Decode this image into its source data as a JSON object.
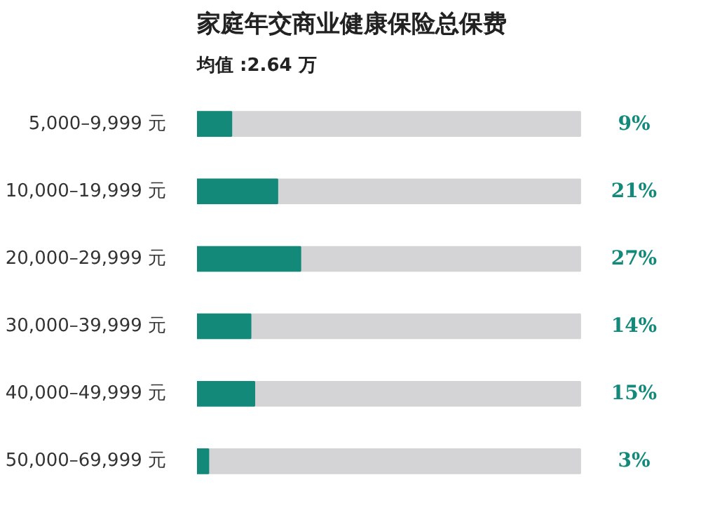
{
  "chart_data": {
    "type": "bar",
    "orientation": "horizontal",
    "title": "家庭年交商业健康保险总保费",
    "subtitle": "均值 :2.64 万",
    "categories": [
      "5,000–9,999 元",
      "10,000–19,999 元",
      "20,000–29,999 元",
      "30,000–39,999 元",
      "40,000–49,999 元",
      "50,000–69,999 元"
    ],
    "values": [
      9,
      21,
      27,
      14,
      15,
      3
    ],
    "value_labels": [
      "9%",
      "21%",
      "27%",
      "14%",
      "15%",
      "3%"
    ],
    "color": "#13897a",
    "xlim": [
      0,
      100
    ],
    "tick_labels": "y",
    "grid": false
  }
}
